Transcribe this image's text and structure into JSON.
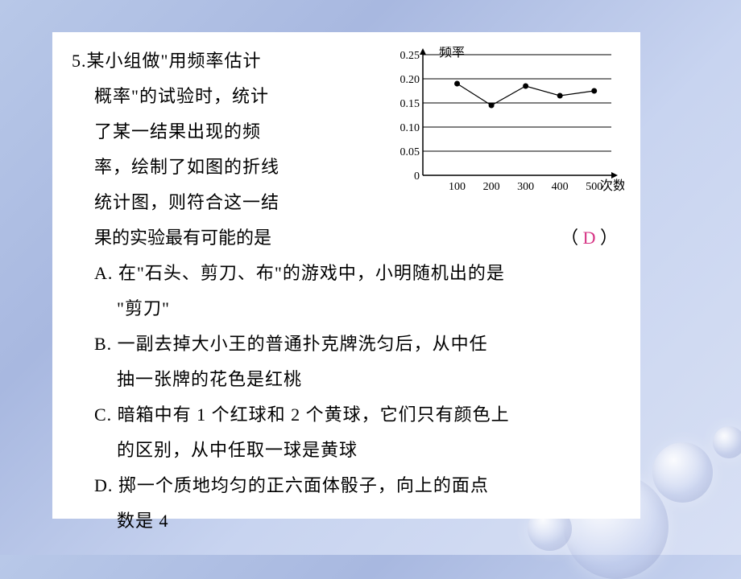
{
  "question": {
    "number": "5.",
    "lines": [
      "某小组做\"用频率估计",
      "概率\"的试验时，统计",
      "了某一结果出现的频",
      "率，绘制了如图的折线",
      "统计图，则符合这一结"
    ],
    "result_line": "果的实验最有可能的是",
    "paren_open": "（",
    "answer": "D",
    "paren_close": "）"
  },
  "options": {
    "A1": "A. 在\"石头、剪刀、布\"的游戏中，小明随机出的是",
    "A2": "\"剪刀\"",
    "B1": "B. 一副去掉大小王的普通扑克牌洗匀后，从中任",
    "B2": "抽一张牌的花色是红桃",
    "C1": "C. 暗箱中有 1 个红球和 2 个黄球，它们只有颜色上",
    "C2": "的区别，从中任取一球是黄球",
    "D1": "D. 掷一个质地均匀的正六面体骰子，向上的面点",
    "D2": "数是 4"
  },
  "chart": {
    "type": "line",
    "x_label": "次数",
    "y_label": "频率",
    "y_ticks": [
      "0",
      "0.05",
      "0.10",
      "0.15",
      "0.20",
      "0.25"
    ],
    "x_ticks": [
      "100",
      "200",
      "300",
      "400",
      "500"
    ],
    "ylim": [
      0,
      0.25
    ],
    "xlim": [
      0,
      550
    ],
    "points": [
      {
        "x": 100,
        "y": 0.19
      },
      {
        "x": 200,
        "y": 0.145
      },
      {
        "x": 300,
        "y": 0.185
      },
      {
        "x": 400,
        "y": 0.165
      },
      {
        "x": 500,
        "y": 0.175
      }
    ],
    "line_color": "#000000",
    "marker_color": "#000000",
    "grid_color": "#000000",
    "background_color": "#ffffff",
    "axis_fontsize": 14,
    "marker_size": 3.5,
    "line_width": 1.2
  }
}
